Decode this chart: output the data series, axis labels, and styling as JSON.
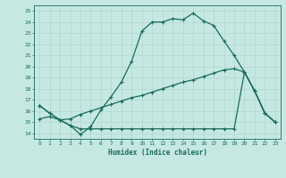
{
  "background_color": "#c5e8e2",
  "line_color": "#1a6b5a",
  "grid_color": "#b0d8d0",
  "xlabel": "Humidex (Indice chaleur)",
  "xlim": [
    -0.5,
    23.5
  ],
  "ylim": [
    13.5,
    25.5
  ],
  "xticks": [
    0,
    1,
    2,
    3,
    4,
    5,
    6,
    7,
    8,
    9,
    10,
    11,
    12,
    13,
    14,
    15,
    16,
    17,
    18,
    19,
    20,
    21,
    22,
    23
  ],
  "yticks": [
    14,
    15,
    16,
    17,
    18,
    19,
    20,
    21,
    22,
    23,
    24,
    25
  ],
  "curve1_x": [
    0,
    1,
    2,
    3,
    4,
    5,
    6,
    7,
    8,
    9,
    10,
    11,
    12,
    13,
    14,
    15,
    16,
    17,
    18,
    19,
    20,
    21,
    22,
    23
  ],
  "curve1_y": [
    16.5,
    15.8,
    15.2,
    14.7,
    13.9,
    14.6,
    16.1,
    17.3,
    18.6,
    20.5,
    23.2,
    24.0,
    24.0,
    24.3,
    24.2,
    24.8,
    24.1,
    23.7,
    22.3,
    21.0,
    19.5,
    17.8,
    15.8,
    15.0
  ],
  "curve2_x": [
    0,
    1,
    2,
    3,
    4,
    5,
    6,
    7,
    8,
    9,
    10,
    11,
    12,
    13,
    14,
    15,
    16,
    17,
    18,
    19,
    20,
    21,
    22,
    23
  ],
  "curve2_y": [
    16.5,
    15.8,
    15.2,
    14.7,
    14.4,
    14.4,
    14.4,
    14.4,
    14.4,
    14.4,
    14.4,
    14.4,
    14.4,
    14.4,
    14.4,
    14.4,
    14.4,
    14.4,
    14.4,
    14.4,
    19.5,
    17.8,
    15.8,
    15.0
  ],
  "curve3_x": [
    0,
    1,
    2,
    3,
    4,
    5,
    6,
    7,
    8,
    9,
    10,
    11,
    12,
    13,
    14,
    15,
    16,
    17,
    18,
    19,
    20,
    21,
    22,
    23
  ],
  "curve3_y": [
    15.3,
    15.5,
    15.2,
    15.3,
    15.7,
    16.0,
    16.3,
    16.6,
    16.9,
    17.2,
    17.4,
    17.7,
    18.0,
    18.3,
    18.6,
    18.8,
    19.1,
    19.4,
    19.7,
    19.8,
    19.5,
    17.8,
    15.8,
    15.0
  ]
}
